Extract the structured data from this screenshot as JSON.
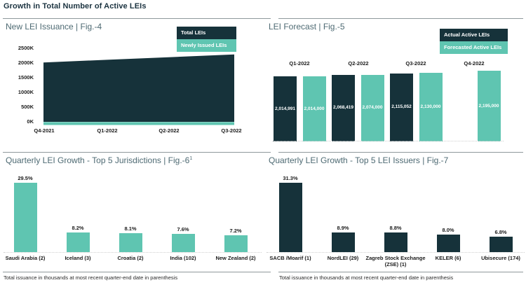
{
  "header": {
    "title": "Growth in Total Number of Active LEIs"
  },
  "colors": {
    "dark": "#16323A",
    "teal": "#5FC5B1",
    "separator": "#8F989B"
  },
  "chart_data": [
    {
      "id": "fig4",
      "type": "area",
      "title": "New LEI Issuance | Fig.-4",
      "legend": [
        "Total LEIs",
        "Newly Issued LEIs"
      ],
      "x": [
        "Q4-2021",
        "Q1-2022",
        "Q2-2022",
        "Q3-2022"
      ],
      "yticks": [
        "2500K",
        "2000K",
        "1500K",
        "1000K",
        "500K",
        "0K"
      ],
      "ylim_k": [
        0,
        2500
      ],
      "series": [
        {
          "name": "Total LEIs",
          "color": "dark",
          "values_k": [
            2020,
            2110,
            2200,
            2290
          ]
        },
        {
          "name": "Newly Issued LEIs",
          "color": "teal",
          "values_k": [
            100,
            100,
            100,
            100
          ]
        }
      ],
      "legend_position": "top-right",
      "grid": false
    },
    {
      "id": "fig5",
      "type": "bar",
      "title": "LEI Forecast | Fig.-5",
      "legend": [
        "Actual Active LEIs",
        "Forecasted Active LEIs"
      ],
      "categories": [
        "Q1-2022",
        "Q2-2022",
        "Q3-2022",
        "Q4-2022"
      ],
      "series": [
        {
          "name": "Actual Active LEIs",
          "color": "dark",
          "values": [
            2014991,
            2068419,
            2115052,
            null
          ],
          "labels": [
            "2,014,991",
            "2,068,419",
            "2,115,052",
            ""
          ]
        },
        {
          "name": "Forecasted Active LEIs",
          "color": "teal",
          "values": [
            2014000,
            2074000,
            2130000,
            2195000
          ],
          "labels": [
            "2,014,000",
            "2,074,000",
            "2,130,000",
            "2,195,000"
          ]
        }
      ],
      "legend_position": "top-right",
      "value_labels": "inside-white"
    },
    {
      "id": "fig6",
      "type": "bar",
      "title_main": "Quarterly LEI Growth - Top 5 Jurisdictions | Fig.-6",
      "title_sup": "1",
      "categories": [
        "Saudi Arabia (2)",
        "Iceland (3)",
        "Croatia (2)",
        "India (102)",
        "New Zealand (2)"
      ],
      "values": [
        29.5,
        8.2,
        8.1,
        7.6,
        7.2
      ],
      "labels": [
        "29.5%",
        "8.2%",
        "8.1%",
        "7.6%",
        "7.2%"
      ],
      "bar_color": "teal",
      "footnote": "Total issuance in thousands at most recent quarter-end date in parenthesis"
    },
    {
      "id": "fig7",
      "type": "bar",
      "title": "Quarterly LEI Growth - Top 5 LEI Issuers | Fig.-7",
      "categories": [
        "SACB /Moarif (1)",
        "NordLEI (29)",
        "Zagreb Stock Exchange (ZSE) (1)",
        "KELER (6)",
        "Ubisecure (174)"
      ],
      "values": [
        31.3,
        8.9,
        8.8,
        8.0,
        6.8
      ],
      "labels": [
        "31.3%",
        "8.9%",
        "8.8%",
        "8.0%",
        "6.8%"
      ],
      "bar_color": "dark",
      "footnote": "Total issuance in thousands at most recent quarter-end date in parenthesis"
    }
  ]
}
